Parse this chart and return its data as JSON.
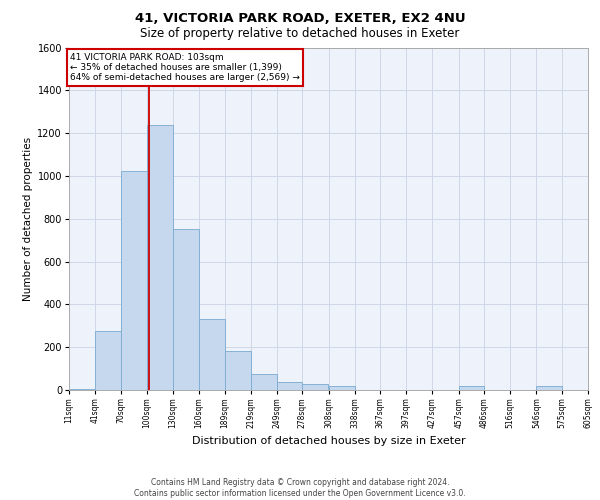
{
  "title_line1": "41, VICTORIA PARK ROAD, EXETER, EX2 4NU",
  "title_line2": "Size of property relative to detached houses in Exeter",
  "xlabel": "Distribution of detached houses by size in Exeter",
  "ylabel": "Number of detached properties",
  "footer_line1": "Contains HM Land Registry data © Crown copyright and database right 2024.",
  "footer_line2": "Contains public sector information licensed under the Open Government Licence v3.0.",
  "annotation_line1": "41 VICTORIA PARK ROAD: 103sqm",
  "annotation_line2": "← 35% of detached houses are smaller (1,399)",
  "annotation_line3": "64% of semi-detached houses are larger (2,569) →",
  "property_size": 103,
  "bar_left_edges": [
    11,
    41,
    70,
    100,
    130,
    160,
    189,
    219,
    249,
    278,
    308,
    338,
    367,
    397,
    427,
    457,
    486,
    516,
    546,
    575
  ],
  "bar_widths": [
    30,
    29,
    30,
    30,
    30,
    29,
    30,
    30,
    29,
    30,
    30,
    29,
    30,
    30,
    30,
    29,
    30,
    30,
    29,
    30
  ],
  "bar_heights": [
    7,
    275,
    1025,
    1240,
    750,
    330,
    180,
    75,
    37,
    30,
    18,
    0,
    0,
    0,
    0,
    18,
    0,
    0,
    18,
    0
  ],
  "tick_labels": [
    "11sqm",
    "41sqm",
    "70sqm",
    "100sqm",
    "130sqm",
    "160sqm",
    "189sqm",
    "219sqm",
    "249sqm",
    "278sqm",
    "308sqm",
    "338sqm",
    "367sqm",
    "397sqm",
    "427sqm",
    "457sqm",
    "486sqm",
    "516sqm",
    "546sqm",
    "575sqm",
    "605sqm"
  ],
  "ylim": [
    0,
    1600
  ],
  "yticks": [
    0,
    200,
    400,
    600,
    800,
    1000,
    1200,
    1400,
    1600
  ],
  "bar_color": "#c5d8ee",
  "bar_edge_color": "#7aaad0",
  "vline_color": "#cc0000",
  "grid_color": "#d0d8e8",
  "background_color": "#eef2fa",
  "annotation_box_color": "#cc0000",
  "annotation_bg": "#ffffff",
  "title1_fontsize": 9.5,
  "title2_fontsize": 8.5,
  "ylabel_fontsize": 7.5,
  "xlabel_fontsize": 8,
  "ytick_fontsize": 7,
  "xtick_fontsize": 5.5,
  "footer_fontsize": 5.5,
  "ann_fontsize": 6.5
}
